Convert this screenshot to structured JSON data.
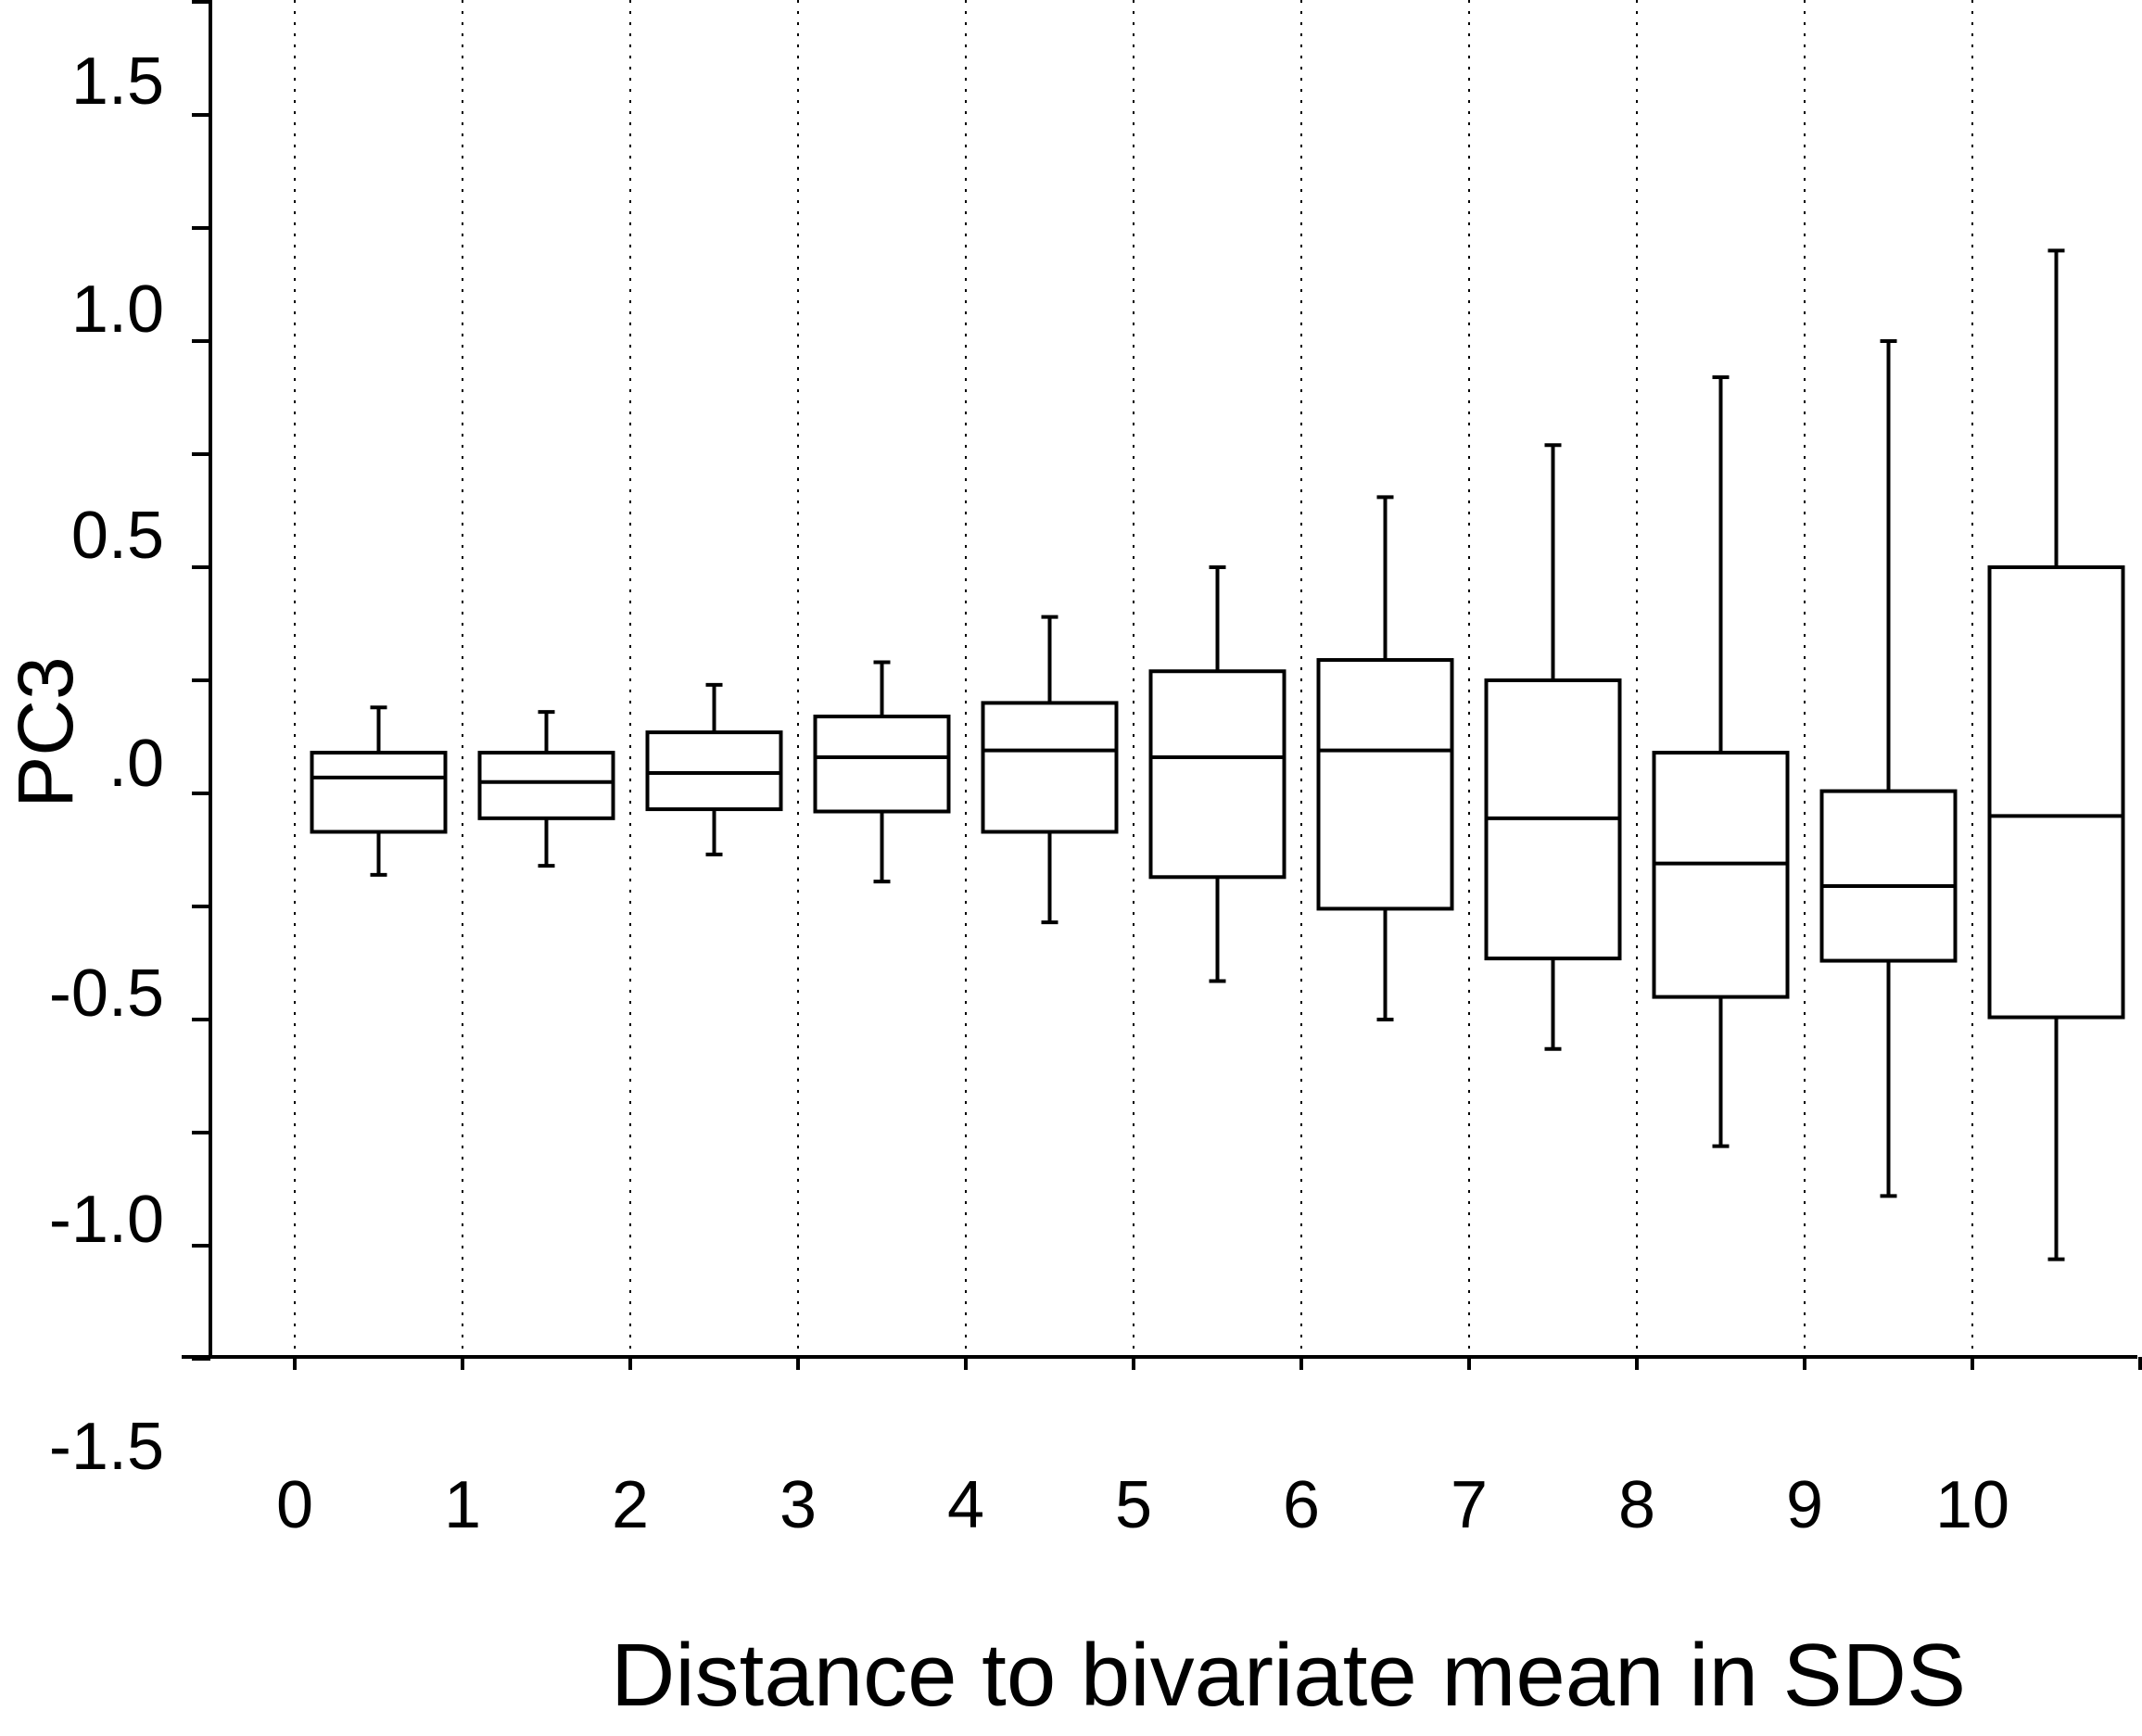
{
  "chart_data": {
    "type": "boxplot",
    "title": "",
    "xlabel": "Distance to bivariate mean in SDS",
    "ylabel": "PC3",
    "ylim": [
      -1.5,
      1.75
    ],
    "y_tick_labels": [
      {
        "value": 1.5,
        "label": "1.5"
      },
      {
        "value": 1.0,
        "label": "1.0"
      },
      {
        "value": 0.5,
        "label": "0.5"
      },
      {
        "value": 0.0,
        "label": ".0"
      },
      {
        "value": -0.5,
        "label": "-0.5"
      },
      {
        "value": -1.0,
        "label": "-1.0"
      },
      {
        "value": -1.5,
        "label": "-1.5"
      }
    ],
    "x_tick_labels": [
      "0",
      "1",
      "2",
      "3",
      "4",
      "5",
      "6",
      "7",
      "8",
      "9",
      "10"
    ],
    "grid": "vertical dotted lines at x ticks",
    "legend": "none",
    "boxes": [
      {
        "whisker_low": -0.18,
        "q1": -0.085,
        "median": 0.035,
        "q3": 0.09,
        "whisker_high": 0.19
      },
      {
        "whisker_low": -0.16,
        "q1": -0.055,
        "median": 0.025,
        "q3": 0.09,
        "whisker_high": 0.18
      },
      {
        "whisker_low": -0.135,
        "q1": -0.035,
        "median": 0.045,
        "q3": 0.135,
        "whisker_high": 0.24
      },
      {
        "whisker_low": -0.195,
        "q1": -0.04,
        "median": 0.08,
        "q3": 0.17,
        "whisker_high": 0.29
      },
      {
        "whisker_low": -0.285,
        "q1": -0.085,
        "median": 0.095,
        "q3": 0.2,
        "whisker_high": 0.39
      },
      {
        "whisker_low": -0.415,
        "q1": -0.185,
        "median": 0.08,
        "q3": 0.27,
        "whisker_high": 0.5
      },
      {
        "whisker_low": -0.5,
        "q1": -0.255,
        "median": 0.095,
        "q3": 0.295,
        "whisker_high": 0.655
      },
      {
        "whisker_low": -0.565,
        "q1": -0.365,
        "median": -0.055,
        "q3": 0.25,
        "whisker_high": 0.77
      },
      {
        "whisker_low": -0.78,
        "q1": -0.45,
        "median": -0.155,
        "q3": 0.09,
        "whisker_high": 0.92
      },
      {
        "whisker_low": -0.89,
        "q1": -0.37,
        "median": -0.205,
        "q3": 0.005,
        "whisker_high": 1.0
      },
      {
        "whisker_low": -1.03,
        "q1": -0.495,
        "median": -0.05,
        "q3": 0.5,
        "whisker_high": 1.2
      }
    ]
  }
}
